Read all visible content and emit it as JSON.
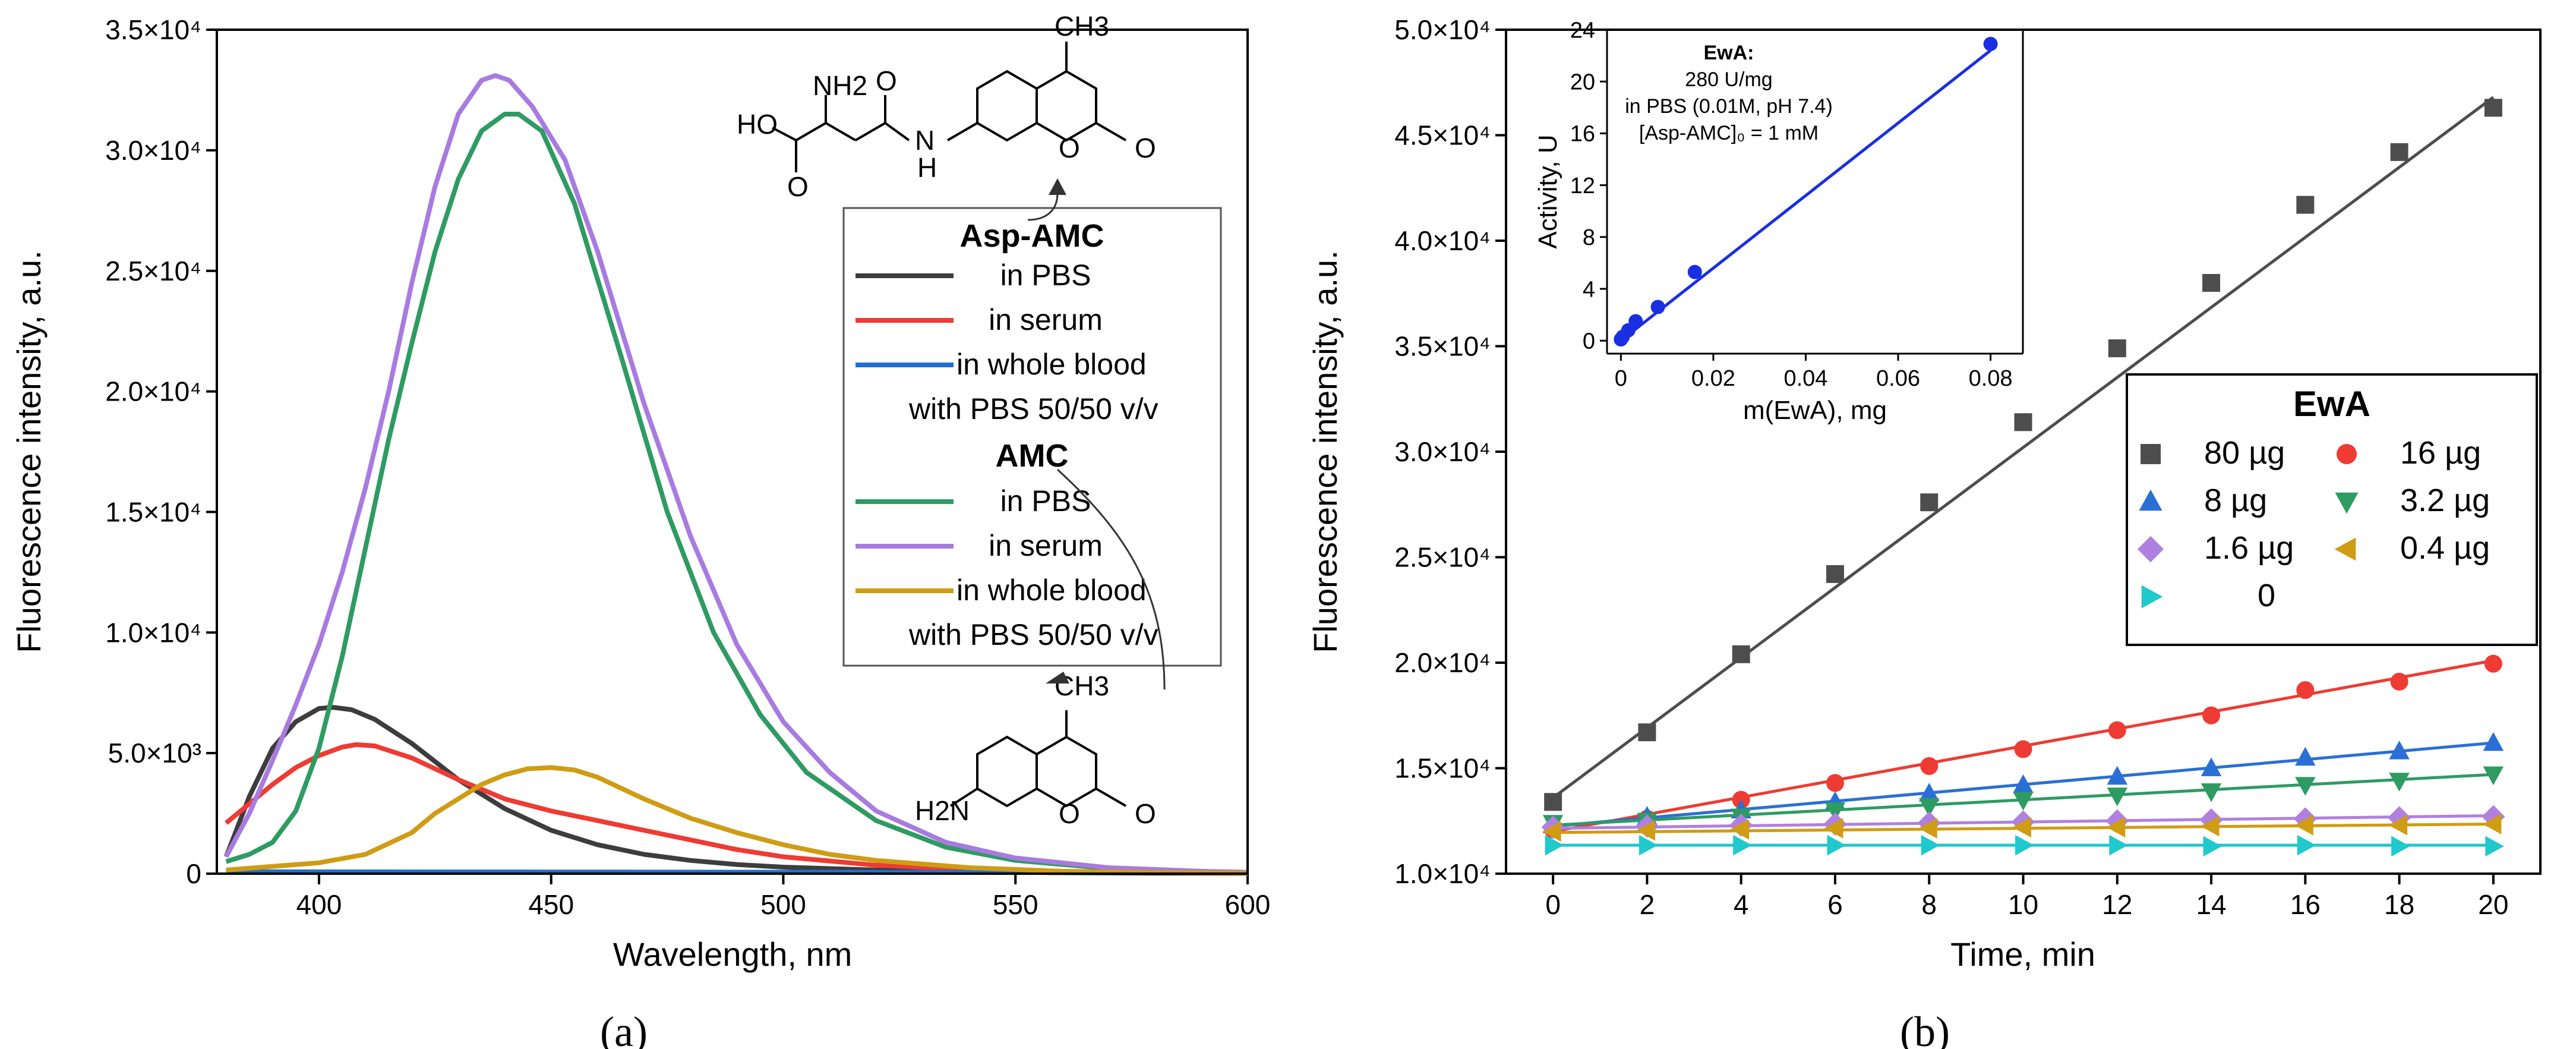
{
  "chart_data": [
    {
      "type": "line",
      "panel_label": "a",
      "xlabel": "Wavelength, nm",
      "ylabel": "Fluorescence intensity, a.u.",
      "xlim": [
        378,
        600
      ],
      "ylim": [
        0,
        35000
      ],
      "x_ticks": [
        "400",
        "450",
        "500",
        "550",
        "600"
      ],
      "x_tick_values": [
        400,
        450,
        500,
        550,
        600
      ],
      "y_ticks": [
        "0",
        "5.0×10³",
        "1.0×10⁴",
        "1.5×10⁴",
        "2.0×10⁴",
        "2.5×10⁴",
        "3.0×10⁴",
        "3.5×10⁴"
      ],
      "y_tick_values": [
        0,
        5000,
        10000,
        15000,
        20000,
        25000,
        30000,
        35000
      ],
      "legend": {
        "groups": [
          {
            "title": "Asp-AMC",
            "entries": [
              "in PBS",
              "in serum",
              "in whole blood",
              "with PBS 50/50 v/v"
            ]
          },
          {
            "title": "AMC",
            "entries": [
              "in PBS",
              "in serum",
              "in whole blood",
              "with PBS 50/50 v/v"
            ]
          }
        ]
      },
      "structure_labels": {
        "asp_amc": [
          "CH3",
          "NH2",
          "O",
          "HO",
          "O",
          "N",
          "H",
          "O",
          "O"
        ],
        "amc": [
          "CH3",
          "H2N",
          "O",
          "O"
        ]
      },
      "series": [
        {
          "name": "Asp-AMC in PBS",
          "color": "#3d3d3d",
          "x": [
            380,
            385,
            390,
            395,
            400,
            403,
            407,
            412,
            420,
            430,
            440,
            450,
            460,
            470,
            480,
            490,
            500,
            520,
            540,
            560,
            580,
            600
          ],
          "y": [
            700,
            3200,
            5200,
            6300,
            6850,
            6900,
            6800,
            6400,
            5400,
            3900,
            2700,
            1800,
            1200,
            800,
            550,
            380,
            270,
            150,
            80,
            40,
            20,
            10
          ]
        },
        {
          "name": "Asp-AMC in serum",
          "color": "#ee3b33",
          "x": [
            380,
            385,
            390,
            395,
            400,
            405,
            408,
            412,
            420,
            430,
            440,
            450,
            460,
            470,
            480,
            490,
            500,
            520,
            540,
            560,
            580,
            600
          ],
          "y": [
            2100,
            2900,
            3700,
            4400,
            4900,
            5250,
            5350,
            5300,
            4800,
            3900,
            3100,
            2600,
            2200,
            1800,
            1400,
            1000,
            700,
            350,
            170,
            80,
            40,
            20
          ]
        },
        {
          "name": "Asp-AMC in whole blood with PBS 50/50 v/v",
          "color": "#1f6fd1",
          "x": [
            380,
            450,
            520,
            600
          ],
          "y": [
            80,
            70,
            60,
            40
          ]
        },
        {
          "name": "AMC in PBS",
          "color": "#2e9b63",
          "x": [
            380,
            385,
            390,
            395,
            400,
            405,
            410,
            415,
            420,
            425,
            430,
            435,
            440,
            443,
            448,
            455,
            465,
            475,
            485,
            495,
            505,
            520,
            535,
            550,
            570,
            590,
            600
          ],
          "y": [
            500,
            800,
            1300,
            2600,
            5200,
            9000,
            13500,
            18000,
            22000,
            25800,
            28800,
            30800,
            31500,
            31500,
            30800,
            27800,
            21500,
            15000,
            10000,
            6600,
            4200,
            2200,
            1100,
            550,
            220,
            90,
            60
          ]
        },
        {
          "name": "AMC in serum",
          "color": "#a87be0",
          "x": [
            380,
            385,
            390,
            395,
            400,
            405,
            410,
            415,
            420,
            425,
            430,
            435,
            438,
            441,
            446,
            453,
            460,
            470,
            480,
            490,
            500,
            510,
            520,
            535,
            550,
            570,
            590,
            600
          ],
          "y": [
            700,
            2500,
            4700,
            7000,
            9500,
            12500,
            16000,
            20000,
            24500,
            28500,
            31500,
            32900,
            33100,
            32900,
            31800,
            29600,
            25800,
            19500,
            14000,
            9500,
            6300,
            4200,
            2600,
            1300,
            650,
            250,
            100,
            60
          ]
        },
        {
          "name": "AMC in whole blood with PBS 50/50 v/v",
          "color": "#cf9c14",
          "x": [
            380,
            390,
            400,
            410,
            420,
            425,
            430,
            435,
            440,
            445,
            450,
            455,
            460,
            470,
            480,
            490,
            500,
            510,
            520,
            540,
            560,
            580,
            600
          ],
          "y": [
            150,
            300,
            450,
            800,
            1700,
            2500,
            3100,
            3700,
            4100,
            4350,
            4400,
            4300,
            4000,
            3100,
            2300,
            1700,
            1200,
            800,
            550,
            250,
            100,
            50,
            20
          ]
        }
      ]
    },
    {
      "type": "scatter",
      "panel_label": "b",
      "xlabel": "Time, min",
      "ylabel": "Fluorescence intensity, a.u.",
      "xlim": [
        -1,
        21
      ],
      "ylim": [
        10000,
        50000
      ],
      "x_ticks": [
        "0",
        "2",
        "4",
        "6",
        "8",
        "10",
        "12",
        "14",
        "16",
        "18",
        "20"
      ],
      "x_tick_values": [
        0,
        2,
        4,
        6,
        8,
        10,
        12,
        14,
        16,
        18,
        20
      ],
      "y_ticks": [
        "1.0×10⁴",
        "1.5×10⁴",
        "2.0×10⁴",
        "2.5×10⁴",
        "3.0×10⁴",
        "3.5×10⁴",
        "4.0×10⁴",
        "4.5×10⁴",
        "5.0×10⁴"
      ],
      "y_tick_values": [
        10000,
        15000,
        20000,
        25000,
        30000,
        35000,
        40000,
        45000,
        50000
      ],
      "legend": {
        "title": "EwA",
        "entries": [
          "80 µg",
          "16 µg",
          "8 µg",
          "3.2 µg",
          "1.6 µg",
          "0.4 µg",
          "0"
        ]
      },
      "x": [
        0,
        2,
        4,
        6,
        8,
        10,
        12,
        14,
        16,
        18,
        20
      ],
      "series": [
        {
          "name": "80 µg",
          "color": "#4d4d4d",
          "marker": "square",
          "y": [
            13400,
            16700,
            20400,
            24200,
            27600,
            31400,
            34900,
            38000,
            41700,
            44200,
            46300
          ],
          "fit": [
            13600,
            46800
          ]
        },
        {
          "name": "16 µg",
          "color": "#ee3b33",
          "marker": "circle",
          "y": [
            12100,
            12600,
            13500,
            14300,
            15100,
            15900,
            16800,
            17500,
            18700,
            19100,
            19950
          ],
          "fit": [
            12000,
            20100
          ]
        },
        {
          "name": "8 µg",
          "color": "#2a6fd6",
          "marker": "triangle-up",
          "y": [
            12300,
            12700,
            13000,
            13400,
            13800,
            14200,
            14600,
            15000,
            15500,
            15800,
            16200
          ],
          "fit": [
            12250,
            16200
          ]
        },
        {
          "name": "3.2 µg",
          "color": "#2e9b63",
          "marker": "triangle-down",
          "y": [
            12400,
            12500,
            12700,
            13000,
            13200,
            13500,
            13700,
            13900,
            14200,
            14400,
            14700
          ],
          "fit": [
            12300,
            14700
          ]
        },
        {
          "name": "1.6 µg",
          "color": "#b080e0",
          "marker": "diamond",
          "y": [
            12200,
            12250,
            12300,
            12350,
            12400,
            12450,
            12500,
            12550,
            12600,
            12650,
            12700
          ],
          "fit": [
            12150,
            12750
          ]
        },
        {
          "name": "0.4 µg",
          "color": "#cf9c14",
          "marker": "triangle-left",
          "y": [
            12000,
            12050,
            12100,
            12150,
            12150,
            12200,
            12200,
            12250,
            12300,
            12300,
            12350
          ],
          "fit": [
            11950,
            12350
          ]
        },
        {
          "name": "0",
          "color": "#1fc9cc",
          "marker": "triangle-right",
          "y": [
            11350,
            11350,
            11350,
            11350,
            11350,
            11350,
            11350,
            11300,
            11350,
            11300,
            11300
          ],
          "fit": [
            11350,
            11350
          ]
        }
      ],
      "inset": {
        "type": "scatter",
        "xlabel": "m(EwA), mg",
        "ylabel": "Activity, U",
        "xlim": [
          -0.003,
          0.087
        ],
        "ylim": [
          -1,
          24
        ],
        "x_ticks": [
          "0",
          "0.02",
          "0.04",
          "0.06",
          "0.08"
        ],
        "x_tick_values": [
          0,
          0.02,
          0.04,
          0.06,
          0.08
        ],
        "y_ticks": [
          "0",
          "4",
          "8",
          "12",
          "16",
          "20",
          "24"
        ],
        "y_tick_values": [
          0,
          4,
          8,
          12,
          16,
          20,
          24
        ],
        "annotation": [
          "EwA:",
          "280 U/mg",
          "in PBS (0.01M, pH 7.4)",
          "[Asp-AMC]₀ = 1 mM"
        ],
        "color": "#1a2fe0",
        "x": [
          0,
          0.0004,
          0.0016,
          0.0032,
          0.008,
          0.016,
          0.08
        ],
        "y": [
          0.1,
          0.3,
          0.8,
          1.5,
          2.6,
          5.3,
          22.9
        ],
        "fit": {
          "x": [
            0,
            0.08
          ],
          "y": [
            0,
            22.4
          ]
        }
      }
    }
  ],
  "captions": {
    "a": "(a)",
    "b": "(b)"
  }
}
